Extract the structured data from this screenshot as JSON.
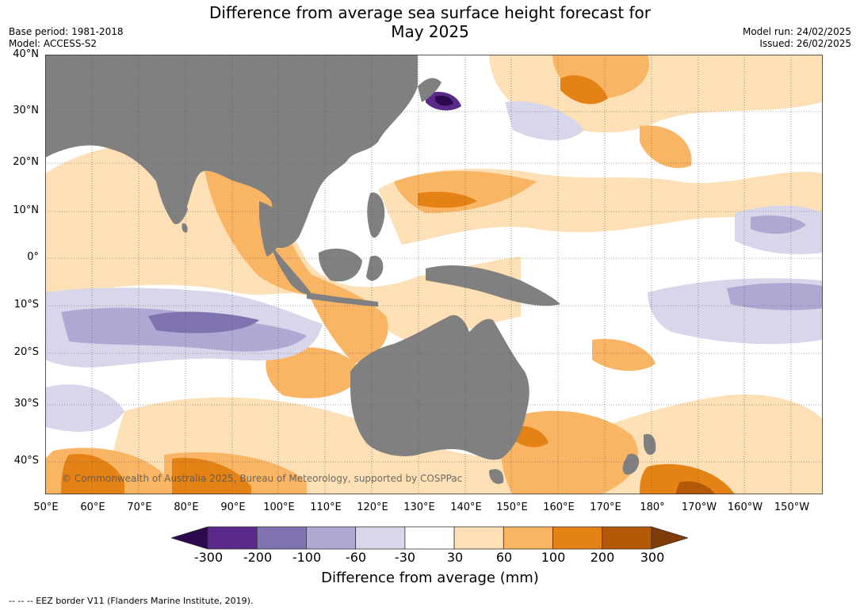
{
  "title_line1": "Difference from average sea surface height forecast for",
  "title_line2": "May 2025",
  "meta_left": [
    "Base period: 1981-2018",
    "Model: ACCESS-S2"
  ],
  "meta_right": [
    "Model run: 24/02/2025",
    "Issued: 26/02/2025"
  ],
  "lat_labels": [
    "40°N",
    "30°N",
    "20°N",
    "10°N",
    "0°",
    "10°S",
    "20°S",
    "30°S",
    "40°S"
  ],
  "lon_labels": [
    "50°E",
    "60°E",
    "70°E",
    "80°E",
    "90°E",
    "100°E",
    "110°E",
    "120°E",
    "130°E",
    "140°E",
    "150°E",
    "160°E",
    "170°E",
    "180°",
    "170°W",
    "160°W",
    "150°W"
  ],
  "copyright": "© Commonwealth of Australia 2025, Bureau of Meteorology, supported by COSPPac",
  "colorbar": {
    "ticks": [
      "-300",
      "-200",
      "-100",
      "-60",
      "-30",
      "30",
      "60",
      "100",
      "200",
      "300"
    ],
    "colors": [
      "#2d0a4e",
      "#5a2a8a",
      "#8073b0",
      "#afa8d2",
      "#d7d6ea",
      "#ffffff",
      "#fde0b5",
      "#f9b563",
      "#e48216",
      "#b35806",
      "#7f3b08"
    ],
    "label": "Difference from average (mm)"
  },
  "land_color": "#808080",
  "footnote": "--  --  -- EEZ border V11 (Flanders Marine Institute, 2019)."
}
